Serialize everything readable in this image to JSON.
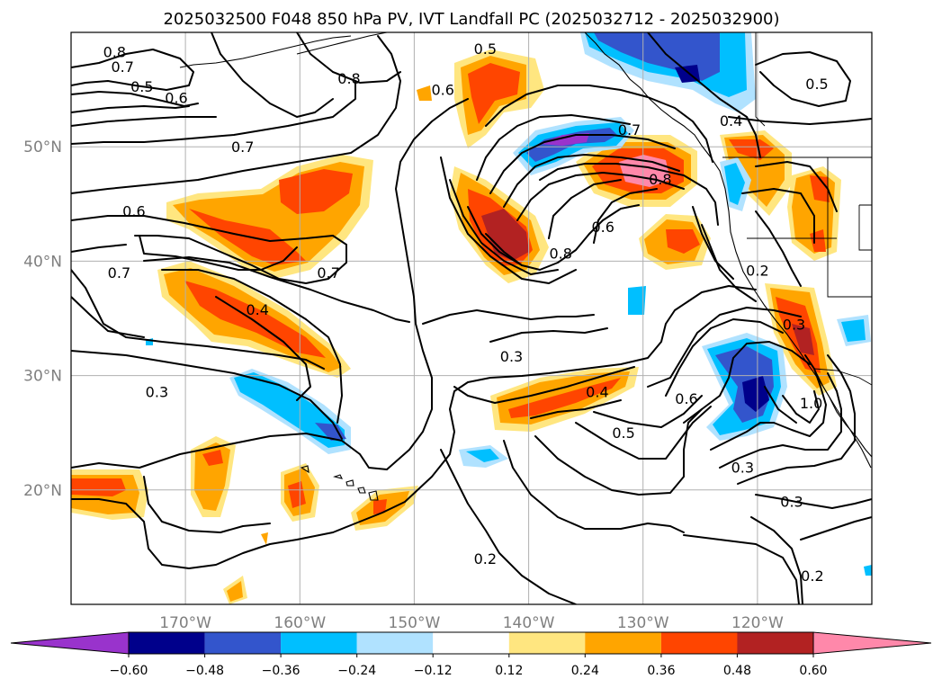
{
  "title": "2025032500 F048 850 hPa PV, IVT Landfall PC (2025032712 - 2025032900)",
  "map": {
    "projection": "PlateCarree",
    "lon_range": [
      -180,
      -110
    ],
    "lat_range": [
      10,
      60
    ],
    "lon_ticks": [
      {
        "lon": -170,
        "label": "170°W"
      },
      {
        "lon": -160,
        "label": "160°W"
      },
      {
        "lon": -150,
        "label": "150°W"
      },
      {
        "lon": -140,
        "label": "140°W"
      },
      {
        "lon": -130,
        "label": "130°W"
      },
      {
        "lon": -120,
        "label": "120°W"
      }
    ],
    "lat_ticks": [
      {
        "lat": 50,
        "label": "50°N"
      },
      {
        "lat": 40,
        "label": "40°N"
      },
      {
        "lat": 30,
        "label": "30°N"
      },
      {
        "lat": 20,
        "label": "20°N"
      }
    ],
    "gridlines": true
  },
  "colorbar": {
    "levels": [
      -0.6,
      -0.48,
      -0.36,
      -0.24,
      -0.12,
      0.12,
      0.24,
      0.36,
      0.48,
      0.6
    ],
    "tick_labels": [
      "−0.60",
      "−0.48",
      "−0.36",
      "−0.24",
      "−0.12",
      "0.12",
      "0.24",
      "0.36",
      "0.48",
      "0.60"
    ],
    "colors": [
      "#9933cc",
      "#00008b",
      "#3355cc",
      "#00bfff",
      "#b0e2ff",
      "#ffffff",
      "#ffe680",
      "#ffa500",
      "#ff4500",
      "#b22222",
      "#ff88aa"
    ],
    "extend": "both"
  },
  "contour_labels": [
    {
      "lon": -176.2,
      "lat": 58.3,
      "text": "0.8"
    },
    {
      "lon": -175.5,
      "lat": 57.0,
      "text": "0.7"
    },
    {
      "lon": -173.8,
      "lat": 55.3,
      "text": "0.5"
    },
    {
      "lon": -170.8,
      "lat": 54.3,
      "text": "0.6"
    },
    {
      "lon": -165.0,
      "lat": 50.0,
      "text": "0.7"
    },
    {
      "lon": -155.7,
      "lat": 56.0,
      "text": "0.8"
    },
    {
      "lon": -147.5,
      "lat": 55.0,
      "text": "0.6"
    },
    {
      "lon": -143.8,
      "lat": 58.6,
      "text": "0.5"
    },
    {
      "lon": -122.3,
      "lat": 52.3,
      "text": "0.4"
    },
    {
      "lon": -114.8,
      "lat": 55.5,
      "text": "0.5"
    },
    {
      "lon": -131.2,
      "lat": 51.5,
      "text": "0.7"
    },
    {
      "lon": -128.5,
      "lat": 47.2,
      "text": "0.8"
    },
    {
      "lon": -137.2,
      "lat": 40.7,
      "text": "0.8"
    },
    {
      "lon": -133.5,
      "lat": 43.0,
      "text": "0.6"
    },
    {
      "lon": -174.5,
      "lat": 44.4,
      "text": "0.6"
    },
    {
      "lon": -175.8,
      "lat": 39.0,
      "text": "0.7"
    },
    {
      "lon": -157.5,
      "lat": 39.0,
      "text": "0.7"
    },
    {
      "lon": -163.7,
      "lat": 35.8,
      "text": "0.4"
    },
    {
      "lon": -172.5,
      "lat": 28.6,
      "text": "0.3"
    },
    {
      "lon": -141.5,
      "lat": 31.7,
      "text": "0.3"
    },
    {
      "lon": -134.0,
      "lat": 28.6,
      "text": "0.4"
    },
    {
      "lon": -131.7,
      "lat": 25.0,
      "text": "0.5"
    },
    {
      "lon": -126.2,
      "lat": 28.0,
      "text": "0.6"
    },
    {
      "lon": -121.3,
      "lat": 22.0,
      "text": "0.3"
    },
    {
      "lon": -117.0,
      "lat": 19.0,
      "text": "0.3"
    },
    {
      "lon": -115.3,
      "lat": 27.6,
      "text": "1.0"
    },
    {
      "lon": -116.8,
      "lat": 34.5,
      "text": "0.3"
    },
    {
      "lon": -120.0,
      "lat": 39.2,
      "text": "0.2"
    },
    {
      "lon": -143.8,
      "lat": 14.0,
      "text": "0.2"
    },
    {
      "lon": -115.2,
      "lat": 12.5,
      "text": "0.2"
    }
  ]
}
